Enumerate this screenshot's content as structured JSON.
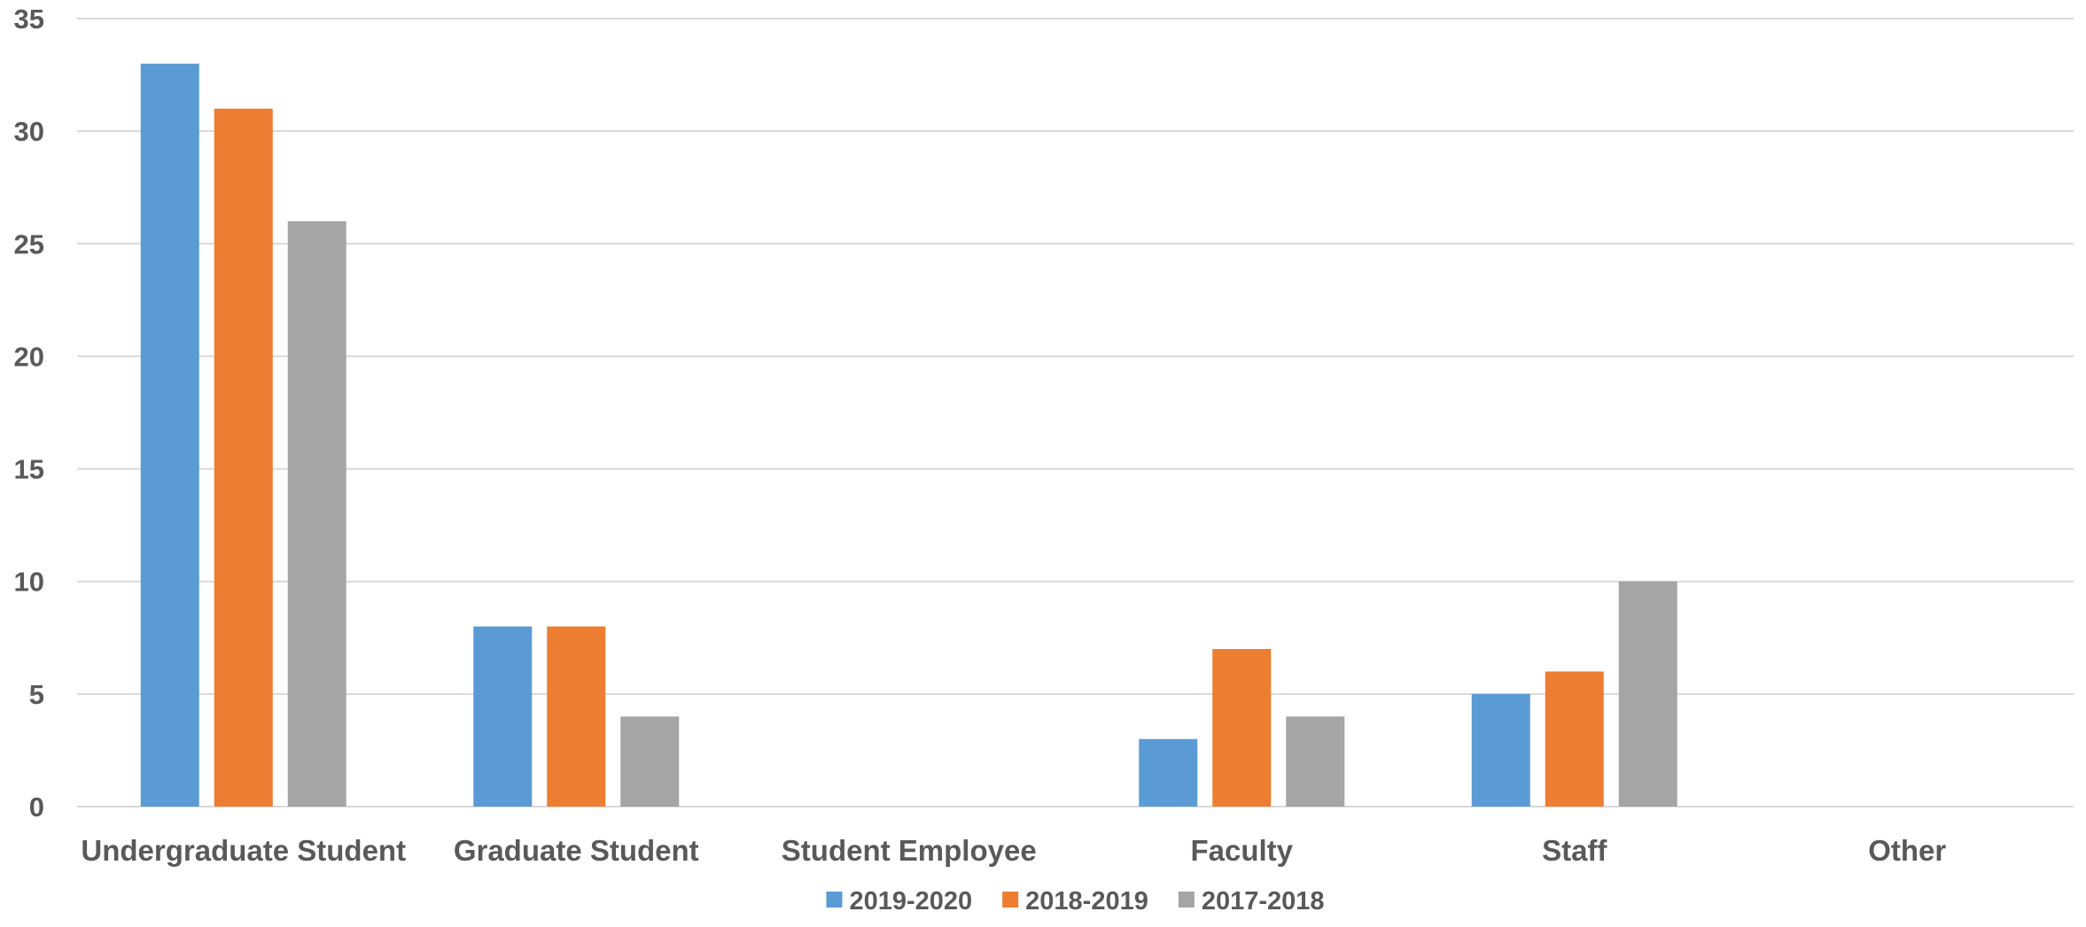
{
  "chart_data": {
    "type": "bar",
    "categories": [
      "Undergraduate Student",
      "Graduate Student",
      "Student Employee",
      "Faculty",
      "Staff",
      "Other"
    ],
    "series": [
      {
        "name": "2019-2020",
        "color": "#5B9BD5",
        "values": [
          33,
          8,
          0,
          3,
          5,
          0
        ]
      },
      {
        "name": "2018-2019",
        "color": "#ED7D31",
        "values": [
          31,
          8,
          0,
          7,
          6,
          0
        ]
      },
      {
        "name": "2017-2018",
        "color": "#A5A5A5",
        "values": [
          26,
          4,
          0,
          4,
          10,
          0
        ]
      }
    ],
    "ylim": [
      0,
      35
    ],
    "yticks": [
      0,
      5,
      10,
      15,
      20,
      25,
      30,
      35
    ],
    "grid": true,
    "legend_position": "bottom",
    "gridline_color": "#D9D9D9",
    "text_color": "#595959"
  }
}
